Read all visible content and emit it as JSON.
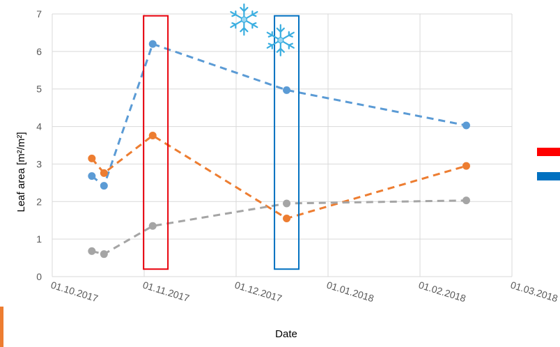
{
  "chart_data": {
    "type": "line",
    "title": "",
    "xlabel": "Date",
    "ylabel": "Leaf area [m²/m²]",
    "x_ticks": [
      "01.10.2017",
      "01.11.2017",
      "01.12.2017",
      "01.01.2018",
      "01.02.2018",
      "01.03.2018"
    ],
    "xlim": [
      "2017-10-01",
      "2018-03-01"
    ],
    "y_ticks": [
      "0",
      "1",
      "2",
      "3",
      "4",
      "5",
      "6",
      "7"
    ],
    "ylim": [
      0,
      7
    ],
    "grid": true,
    "line_style": "dashed",
    "series": [
      {
        "color": "#5b9bd5",
        "points": [
          {
            "x": "2017-10-14",
            "y": 2.68
          },
          {
            "x": "2017-10-18",
            "y": 2.42
          },
          {
            "x": "2017-11-03",
            "y": 6.2
          },
          {
            "x": "2017-12-17",
            "y": 4.97
          },
          {
            "x": "2018-02-14",
            "y": 4.03
          }
        ]
      },
      {
        "color": "#ed7d31",
        "points": [
          {
            "x": "2017-10-14",
            "y": 3.15
          },
          {
            "x": "2017-10-18",
            "y": 2.76
          },
          {
            "x": "2017-11-03",
            "y": 3.76
          },
          {
            "x": "2017-12-17",
            "y": 1.55
          },
          {
            "x": "2018-02-14",
            "y": 2.95
          }
        ]
      },
      {
        "color": "#a5a5a5",
        "points": [
          {
            "x": "2017-10-14",
            "y": 0.68
          },
          {
            "x": "2017-10-18",
            "y": 0.6
          },
          {
            "x": "2017-11-03",
            "y": 1.35
          },
          {
            "x": "2017-12-17",
            "y": 1.95
          },
          {
            "x": "2018-02-14",
            "y": 2.03
          }
        ]
      }
    ],
    "highlight_boxes": [
      {
        "color": "#e8000b",
        "x_from": "2017-10-31",
        "x_to": "2017-11-08",
        "y_from": 0.2,
        "y_to": 6.95
      },
      {
        "color": "#0070c0",
        "x_from": "2017-12-13",
        "x_to": "2017-12-21",
        "y_from": 0.2,
        "y_to": 6.95
      }
    ],
    "annotations": [
      {
        "kind": "snowflake-icon",
        "x": "2017-12-03",
        "y": 6.85
      },
      {
        "kind": "snowflake-icon",
        "x": "2017-12-15",
        "y": 6.3
      }
    ],
    "side_markers": [
      {
        "color": "#ff0000"
      },
      {
        "color": "#0070c0"
      }
    ]
  },
  "decor": {
    "left_edge_bar_color": "#ed7d31"
  }
}
